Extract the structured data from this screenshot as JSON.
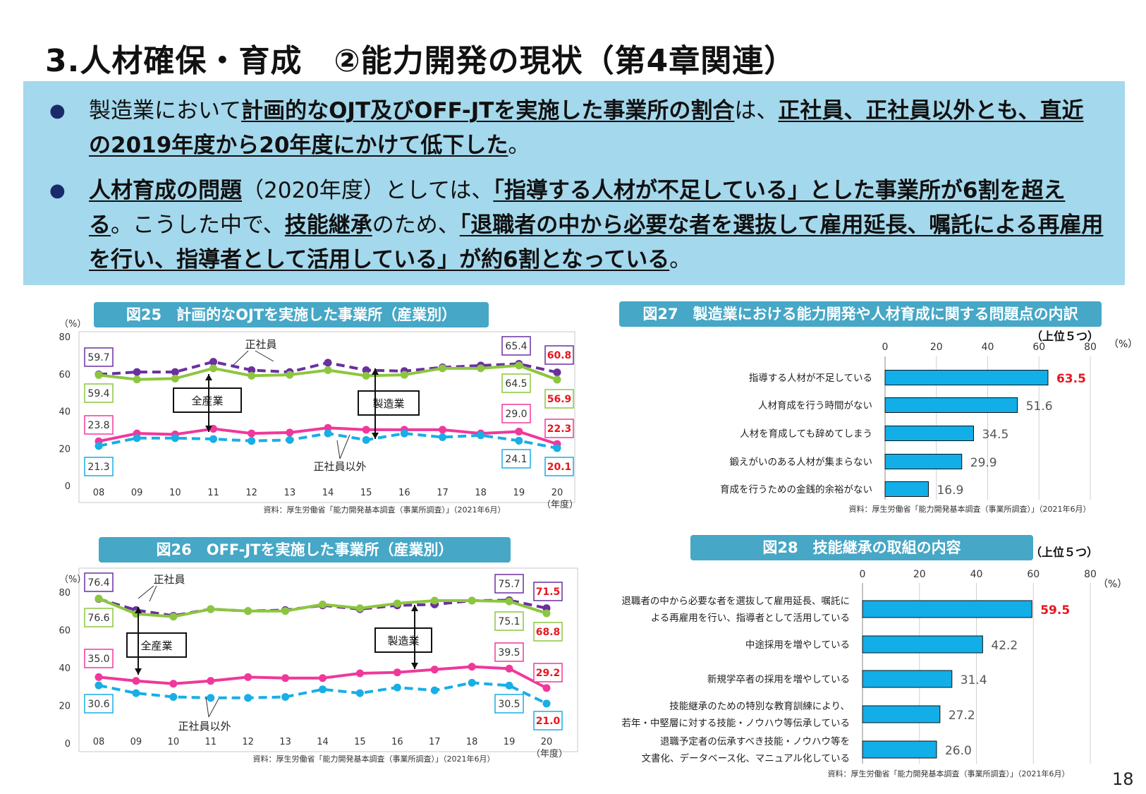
{
  "title": "3.人材確保・育成　②能力開発の現状（第4章関連）",
  "summary": {
    "b1": {
      "p1": "製造業において",
      "p2": "計画的なOJT及びOFF-JTを実施した事業所の割合",
      "p3": "は、",
      "p4": "正社員、正社員以外とも、直近の2019年度から20年度にかけて低下した",
      "p5": "。"
    },
    "b2": {
      "p1": "人材育成の問題",
      "p2": "（2020年度）としては、",
      "p3": "「指導する人材が不足している」とした事業所が6割を超える",
      "p4": "。こうした中で、",
      "p5": "技能継承",
      "p6": "のため、",
      "p7": "「退職者の中から必要な者を選抜して雇用延長、嘱託による再雇用を行い、指導者として活用している」が約6割となっている",
      "p8": "。"
    }
  },
  "page_number": "18",
  "colors": {
    "purple": "#6b2fa0",
    "green": "#8cc63f",
    "pink": "#f0389b",
    "blue": "#18aee6",
    "bar": "#12aee8",
    "red": "#e6171e",
    "header": "#46a7c6",
    "panel": "#a4d8ec"
  },
  "chart_data": [
    {
      "id": "fig25",
      "type": "line",
      "title": "図25　計画的なOJTを実施した事業所（産業別）",
      "ylabel": "（%）",
      "xlabel": "（年度）",
      "ylim": [
        0,
        80
      ],
      "yticks": [
        "0",
        "20",
        "40",
        "60",
        "80"
      ],
      "categories": [
        "08",
        "09",
        "10",
        "11",
        "12",
        "13",
        "14",
        "15",
        "16",
        "17",
        "18",
        "19",
        "20"
      ],
      "series": [
        {
          "name": "製造業・正社員",
          "color": "#6b2fa0",
          "dashed": true,
          "values": [
            59.7,
            61,
            61,
            66.5,
            62,
            61,
            66,
            62,
            61.5,
            63.5,
            64.5,
            65.4,
            60.8
          ]
        },
        {
          "name": "全産業・正社員",
          "color": "#8cc63f",
          "dashed": false,
          "values": [
            59.4,
            57,
            57.5,
            63,
            59,
            59.5,
            62,
            59,
            59.5,
            63,
            63,
            64.5,
            56.9
          ]
        },
        {
          "name": "全産業・正社員以外",
          "color": "#f0389b",
          "dashed": false,
          "values": [
            23.8,
            28,
            27.5,
            30.5,
            28,
            28.5,
            31,
            30,
            30,
            30,
            28,
            29.0,
            22.3
          ]
        },
        {
          "name": "製造業・正社員以外",
          "color": "#18aee6",
          "dashed": true,
          "values": [
            21.3,
            25.5,
            25.5,
            25,
            24,
            24.5,
            28,
            24.5,
            28,
            26,
            27,
            24.1,
            20.1
          ]
        }
      ],
      "labels": [
        {
          "text": "59.7",
          "color": "#6b2fa0"
        },
        {
          "text": "59.4",
          "color": "#8cc63f"
        },
        {
          "text": "23.8",
          "color": "#f0389b"
        },
        {
          "text": "21.3",
          "color": "#18aee6"
        },
        {
          "text": "65.4",
          "color": "#6b2fa0"
        },
        {
          "text": "64.5",
          "color": "#8cc63f"
        },
        {
          "text": "29.0",
          "color": "#f0389b"
        },
        {
          "text": "24.1",
          "color": "#18aee6"
        },
        {
          "text": "60.8",
          "color": "#6b2fa0"
        },
        {
          "text": "56.9",
          "color": "#8cc63f"
        },
        {
          "text": "22.3",
          "color": "#f0389b"
        },
        {
          "text": "20.1",
          "color": "#18aee6"
        }
      ],
      "annotations": {
        "regular": "正社員",
        "nonregular": "正社員以外",
        "all": "全産業",
        "mfg": "製造業"
      },
      "source": "資料：厚生労働省「能力開発基本調査（事業所調査）」（2021年6月）"
    },
    {
      "id": "fig26",
      "type": "line",
      "title": "図26　OFF-JTを実施した事業所（産業別）",
      "ylabel": "（%）",
      "xlabel": "（年度）",
      "ylim": [
        0,
        80
      ],
      "yticks": [
        "0",
        "20",
        "40",
        "60",
        "80"
      ],
      "categories": [
        "08",
        "09",
        "10",
        "11",
        "12",
        "13",
        "14",
        "15",
        "16",
        "17",
        "18",
        "19",
        "20"
      ],
      "series": [
        {
          "name": "製造業・正社員",
          "color": "#6b2fa0",
          "dashed": true,
          "values": [
            76.4,
            70.5,
            67.5,
            71,
            70,
            70.5,
            73,
            71,
            73,
            73.5,
            75.5,
            75.7,
            71.5
          ]
        },
        {
          "name": "全産業・正社員",
          "color": "#8cc63f",
          "dashed": false,
          "values": [
            76.6,
            68.5,
            67,
            71,
            70,
            70,
            73.5,
            71.5,
            74,
            75.5,
            75.5,
            75.1,
            68.8
          ]
        },
        {
          "name": "全産業・正社員以外",
          "color": "#f0389b",
          "dashed": false,
          "values": [
            35.0,
            33,
            31.5,
            33,
            35,
            34.5,
            34.5,
            37,
            37.5,
            39,
            40.5,
            39.5,
            29.2
          ]
        },
        {
          "name": "製造業・正社員以外",
          "color": "#18aee6",
          "dashed": true,
          "values": [
            30.6,
            26.5,
            24.5,
            24,
            24,
            24.5,
            28.5,
            26.5,
            29.5,
            28,
            32,
            30.5,
            21.0
          ]
        }
      ],
      "labels": [
        {
          "text": "76.4",
          "color": "#6b2fa0"
        },
        {
          "text": "76.6",
          "color": "#8cc63f"
        },
        {
          "text": "35.0",
          "color": "#f0389b"
        },
        {
          "text": "30.6",
          "color": "#18aee6"
        },
        {
          "text": "75.7",
          "color": "#6b2fa0"
        },
        {
          "text": "75.1",
          "color": "#8cc63f"
        },
        {
          "text": "39.5",
          "color": "#f0389b"
        },
        {
          "text": "30.5",
          "color": "#18aee6"
        },
        {
          "text": "71.5",
          "color": "#6b2fa0"
        },
        {
          "text": "68.8",
          "color": "#8cc63f"
        },
        {
          "text": "29.2",
          "color": "#f0389b"
        },
        {
          "text": "21.0",
          "color": "#18aee6"
        }
      ],
      "annotations": {
        "regular": "正社員",
        "nonregular": "正社員以外",
        "all": "全産業",
        "mfg": "製造業"
      },
      "source": "資料：厚生労働省「能力開発基本調査（事業所調査）」（2021年6月）"
    },
    {
      "id": "fig27",
      "type": "bar",
      "title": "図27　製造業における能力開発や人材育成に関する問題点の内訳",
      "subtitle": "（上位５つ）",
      "unit": "（%）",
      "xlim": [
        0,
        80
      ],
      "xticks": [
        "0",
        "20",
        "40",
        "60",
        "80"
      ],
      "categories": [
        [
          "指導する人材が不足している"
        ],
        [
          "人材育成を行う時間がない"
        ],
        [
          "人材を育成しても辞めてしまう"
        ],
        [
          "鍛えがいのある人材が集まらない"
        ],
        [
          "育成を行うための金銭的余裕がない"
        ]
      ],
      "values": [
        63.5,
        51.6,
        34.5,
        29.9,
        16.9
      ],
      "value_labels": [
        "63.5",
        "51.6",
        "34.5",
        "29.9",
        "16.9"
      ],
      "source": "資料：厚生労働省「能力開発基本調査（事業所調査）」（2021年6月）"
    },
    {
      "id": "fig28",
      "type": "bar",
      "title": "図28　技能継承の取組の内容",
      "subtitle": "（上位５つ）",
      "unit": "（%）",
      "xlim": [
        0,
        80
      ],
      "xticks": [
        "0",
        "20",
        "40",
        "60",
        "80"
      ],
      "categories": [
        [
          "退職者の中から必要な者を選抜して雇用延長、嘱託に",
          "よる再雇用を行い、指導者として活用している"
        ],
        [
          "中途採用を増やしている"
        ],
        [
          "新規学卒者の採用を増やしている"
        ],
        [
          "技能継承のための特別な教育訓練により、",
          "若年・中堅層に対する技能・ノウハウ等伝承している"
        ],
        [
          "退職予定者の伝承すべき技能・ノウハウ等を",
          "文書化、データベース化、マニュアル化している"
        ]
      ],
      "values": [
        59.5,
        42.2,
        31.4,
        27.2,
        26.0
      ],
      "value_labels": [
        "59.5",
        "42.2",
        "31.4",
        "27.2",
        "26.0"
      ],
      "source": "資料：厚生労働省「能力開発基本調査（事業所調査）」（2021年6月）"
    }
  ]
}
